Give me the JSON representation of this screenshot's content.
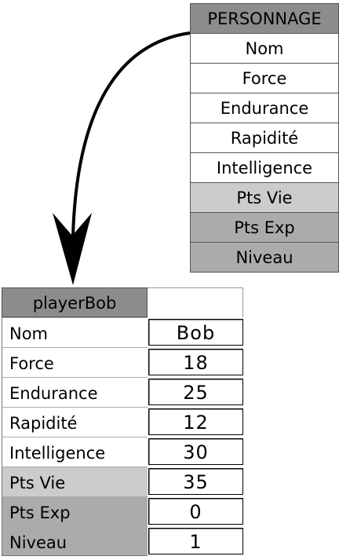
{
  "class_table": {
    "title": "PERSONNAGE",
    "rows": [
      {
        "label": "Nom",
        "shade": "white"
      },
      {
        "label": "Force",
        "shade": "white"
      },
      {
        "label": "Endurance",
        "shade": "white"
      },
      {
        "label": "Rapidité",
        "shade": "white"
      },
      {
        "label": "Intelligence",
        "shade": "white"
      },
      {
        "label": "Pts Vie",
        "shade": "light"
      },
      {
        "label": "Pts Exp",
        "shade": "mid"
      },
      {
        "label": "Niveau",
        "shade": "mid"
      }
    ]
  },
  "instance_table": {
    "title": "playerBob",
    "rows": [
      {
        "label": "Nom",
        "value": "Bob",
        "shade": "white"
      },
      {
        "label": "Force",
        "value": "18",
        "shade": "white"
      },
      {
        "label": "Endurance",
        "value": "25",
        "shade": "white"
      },
      {
        "label": "Rapidité",
        "value": "12",
        "shade": "white"
      },
      {
        "label": "Intelligence",
        "value": "30",
        "shade": "white"
      },
      {
        "label": "Pts Vie",
        "value": "35",
        "shade": "light"
      },
      {
        "label": "Pts Exp",
        "value": "0",
        "shade": "mid"
      },
      {
        "label": "Niveau",
        "value": "1",
        "shade": "mid"
      }
    ]
  },
  "colors": {
    "header_gray": "#8c8c8c",
    "light_gray": "#cccccc",
    "mid_gray": "#ababab",
    "arrow": "#000000"
  }
}
